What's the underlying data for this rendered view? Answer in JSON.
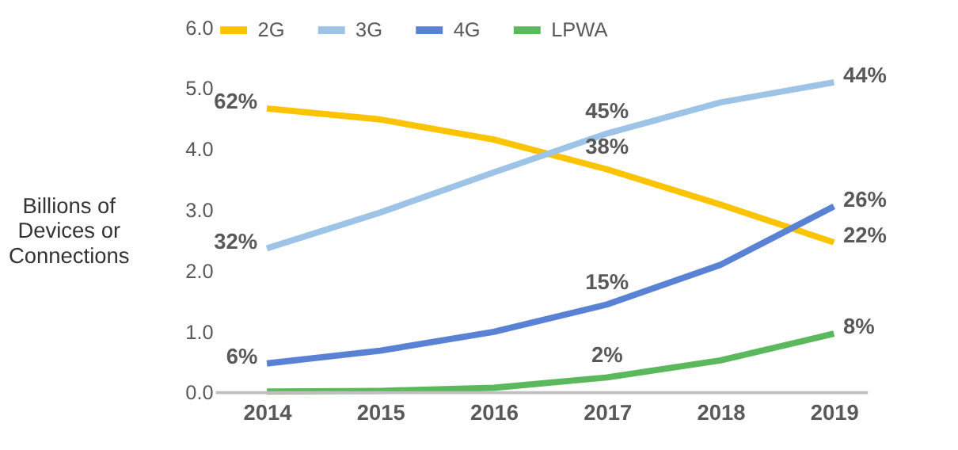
{
  "chart_data": {
    "type": "line",
    "ylabel": "Billions of Devices or Connections",
    "categories": [
      "2014",
      "2015",
      "2016",
      "2017",
      "2018",
      "2019"
    ],
    "series": [
      {
        "name": "2G",
        "color": "#fcc400",
        "values": [
          4.67,
          4.49,
          4.16,
          3.67,
          3.09,
          2.47
        ]
      },
      {
        "name": "3G",
        "color": "#9dc3e6",
        "values": [
          2.37,
          2.96,
          3.62,
          4.26,
          4.77,
          5.1
        ]
      },
      {
        "name": "4G",
        "color": "#5a82d4",
        "values": [
          0.48,
          0.69,
          1.0,
          1.45,
          2.1,
          3.06
        ]
      },
      {
        "name": "LPWA",
        "color": "#5cb85c",
        "values": [
          0.02,
          0.03,
          0.08,
          0.25,
          0.53,
          0.97
        ]
      }
    ],
    "ylim": [
      0,
      6
    ],
    "yticks": [
      {
        "value": 0,
        "label": "0.0"
      },
      {
        "value": 1,
        "label": "1.0"
      },
      {
        "value": 2,
        "label": "2.0"
      },
      {
        "value": 3,
        "label": "3.0"
      },
      {
        "value": 4,
        "label": "4.0"
      },
      {
        "value": 5,
        "label": "5.0"
      },
      {
        "value": 6,
        "label": "6.0"
      }
    ],
    "annotations": [
      {
        "text": "62%",
        "x": "2014",
        "y": 4.67
      },
      {
        "text": "32%",
        "x": "2014",
        "y": 2.37
      },
      {
        "text": "6%",
        "x": "2014",
        "y": 0.48
      },
      {
        "text": "45%",
        "x": "2017",
        "y": 4.26
      },
      {
        "text": "38%",
        "x": "2017",
        "y": 3.67
      },
      {
        "text": "15%",
        "x": "2017",
        "y": 1.45
      },
      {
        "text": "2%",
        "x": "2017",
        "y": 0.25
      },
      {
        "text": "44%",
        "x": "2019",
        "y": 5.1
      },
      {
        "text": "26%",
        "x": "2019",
        "y": 3.06
      },
      {
        "text": "22%",
        "x": "2019",
        "y": 2.47
      },
      {
        "text": "8%",
        "x": "2019",
        "y": 0.97
      }
    ],
    "grid": false,
    "legend": "top",
    "marker": "none",
    "line_style": "solid"
  }
}
